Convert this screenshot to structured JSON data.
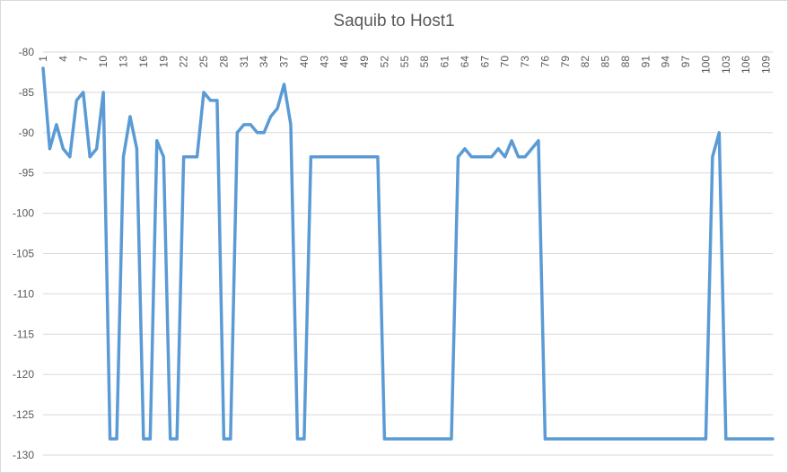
{
  "chart_data": {
    "type": "line",
    "title": "Saquib to Host1",
    "xlabel": "",
    "ylabel": "",
    "ylim": [
      -130,
      -80
    ],
    "ytick_step": 5,
    "xlim": [
      1,
      110
    ],
    "xtick_labels": [
      1,
      4,
      7,
      10,
      13,
      16,
      19,
      22,
      25,
      28,
      31,
      34,
      37,
      40,
      43,
      46,
      49,
      52,
      55,
      58,
      61,
      64,
      67,
      70,
      73,
      76,
      79,
      82,
      85,
      88,
      91,
      94,
      97,
      100,
      103,
      106,
      109
    ],
    "x_axis_position": "top",
    "grid": true,
    "legend": "none",
    "series_color": "#5b9bd5",
    "grid_color": "#d9d9d9",
    "series": [
      {
        "x": [
          1,
          2,
          3,
          4,
          5,
          6,
          7,
          8,
          9,
          10,
          11,
          12,
          13,
          14,
          15,
          16,
          17,
          18,
          19,
          20,
          21,
          22,
          23,
          24,
          25,
          26,
          27,
          28,
          29,
          30,
          31,
          32,
          33,
          34,
          35,
          36,
          37,
          38,
          39,
          40,
          41,
          42,
          43,
          44,
          45,
          46,
          47,
          48,
          49,
          50,
          51,
          52,
          53,
          54,
          55,
          56,
          57,
          58,
          59,
          60,
          61,
          62,
          63,
          64,
          65,
          66,
          67,
          68,
          69,
          70,
          71,
          72,
          73,
          74,
          75,
          76,
          77,
          78,
          79,
          80,
          81,
          82,
          83,
          84,
          85,
          86,
          87,
          88,
          89,
          90,
          91,
          92,
          93,
          94,
          95,
          96,
          97,
          98,
          99,
          100,
          101,
          102,
          103,
          104,
          105,
          106,
          107,
          108,
          109,
          110
        ],
        "values": [
          -82,
          -92,
          -89,
          -92,
          -93,
          -86,
          -85,
          -93,
          -92,
          -85,
          -128,
          -128,
          -93,
          -88,
          -92,
          -128,
          -128,
          -91,
          -93,
          -128,
          -128,
          -93,
          -93,
          -93,
          -85,
          -86,
          -86,
          -128,
          -128,
          -90,
          -89,
          -89,
          -90,
          -90,
          -88,
          -87,
          -84,
          -89,
          -128,
          -128,
          -93,
          -93,
          -93,
          -93,
          -93,
          -93,
          -93,
          -93,
          -93,
          -93,
          -93,
          -128,
          -128,
          -128,
          -128,
          -128,
          -128,
          -128,
          -128,
          -128,
          -128,
          -128,
          -93,
          -92,
          -93,
          -93,
          -93,
          -93,
          -92,
          -93,
          -91,
          -93,
          -93,
          -92,
          -91,
          -128,
          -128,
          -128,
          -128,
          -128,
          -128,
          -128,
          -128,
          -128,
          -128,
          -128,
          -128,
          -128,
          -128,
          -128,
          -128,
          -128,
          -128,
          -128,
          -128,
          -128,
          -128,
          -128,
          -128,
          -128,
          -93,
          -90,
          -128,
          -128,
          -128,
          -128,
          -128,
          -128,
          -128,
          -128
        ]
      }
    ]
  }
}
